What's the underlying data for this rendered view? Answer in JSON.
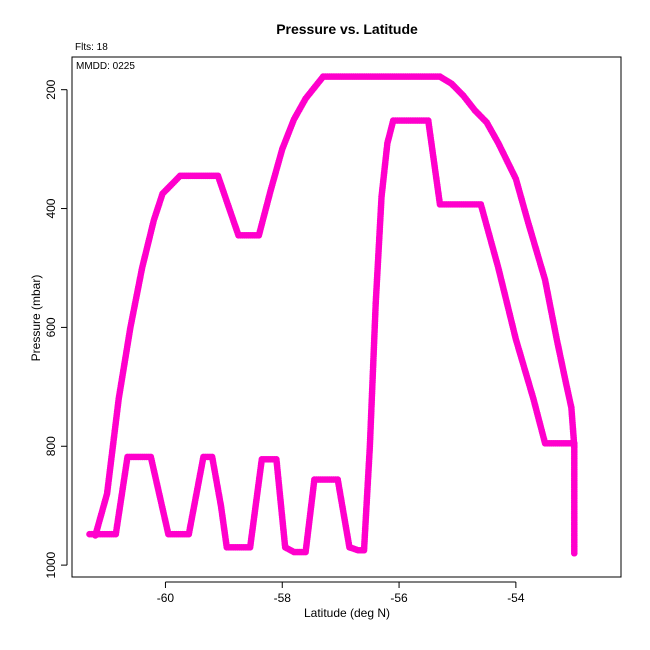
{
  "chart_data": {
    "type": "scatter",
    "title": "Pressure vs. Latitude",
    "xlabel": "Latitude (deg N)",
    "ylabel": "Pressure (mbar)",
    "xlim": [
      -61.6,
      -52.2
    ],
    "ylim": [
      1020,
      145
    ],
    "y_inverted": true,
    "grid": false,
    "xticks": [
      -60,
      -58,
      -56,
      -54
    ],
    "yticks": [
      200,
      400,
      600,
      800,
      1000
    ],
    "marker_color": "#ff00cc",
    "series": [
      {
        "points": [
          [
            -61.2,
            950
          ],
          [
            -61.0,
            880
          ],
          [
            -60.8,
            720
          ],
          [
            -60.6,
            600
          ],
          [
            -60.4,
            500
          ],
          [
            -60.2,
            420
          ],
          [
            -60.05,
            375
          ],
          [
            -59.75,
            345
          ],
          [
            -59.1,
            345
          ],
          [
            -58.75,
            445
          ],
          [
            -58.4,
            445
          ],
          [
            -58.2,
            370
          ],
          [
            -58.0,
            300
          ],
          [
            -57.8,
            250
          ],
          [
            -57.6,
            215
          ],
          [
            -57.3,
            178
          ],
          [
            -55.3,
            178
          ],
          [
            -55.1,
            190
          ],
          [
            -54.9,
            210
          ],
          [
            -54.7,
            235
          ],
          [
            -54.5,
            255
          ],
          [
            -54.3,
            290
          ],
          [
            -54.0,
            350
          ],
          [
            -53.8,
            420
          ],
          [
            -53.5,
            520
          ],
          [
            -53.3,
            620
          ],
          [
            -53.15,
            690
          ],
          [
            -53.05,
            735
          ],
          [
            -53.0,
            800
          ]
        ]
      },
      {
        "points": [
          [
            -61.3,
            948
          ],
          [
            -60.85,
            948
          ],
          [
            -60.65,
            818
          ],
          [
            -60.25,
            818
          ],
          [
            -59.95,
            948
          ],
          [
            -59.6,
            948
          ],
          [
            -59.35,
            818
          ],
          [
            -59.2,
            818
          ],
          [
            -59.05,
            900
          ],
          [
            -58.95,
            970
          ],
          [
            -58.55,
            970
          ],
          [
            -58.35,
            822
          ],
          [
            -58.1,
            822
          ],
          [
            -57.95,
            970
          ],
          [
            -57.8,
            978
          ],
          [
            -57.6,
            978
          ],
          [
            -57.45,
            856
          ],
          [
            -57.05,
            856
          ],
          [
            -56.85,
            970
          ],
          [
            -56.7,
            975
          ],
          [
            -56.6,
            975
          ],
          [
            -56.5,
            800
          ],
          [
            -56.4,
            560
          ],
          [
            -56.3,
            380
          ],
          [
            -56.2,
            290
          ],
          [
            -56.1,
            252
          ],
          [
            -55.5,
            252
          ],
          [
            -55.3,
            393
          ],
          [
            -54.6,
            393
          ],
          [
            -54.3,
            500
          ],
          [
            -54.0,
            620
          ],
          [
            -53.7,
            720
          ],
          [
            -53.5,
            795
          ],
          [
            -53.0,
            795
          ],
          [
            -53.0,
            980
          ]
        ]
      }
    ],
    "annotations": [
      "Flts: 18",
      "MMDD: 0225"
    ]
  }
}
